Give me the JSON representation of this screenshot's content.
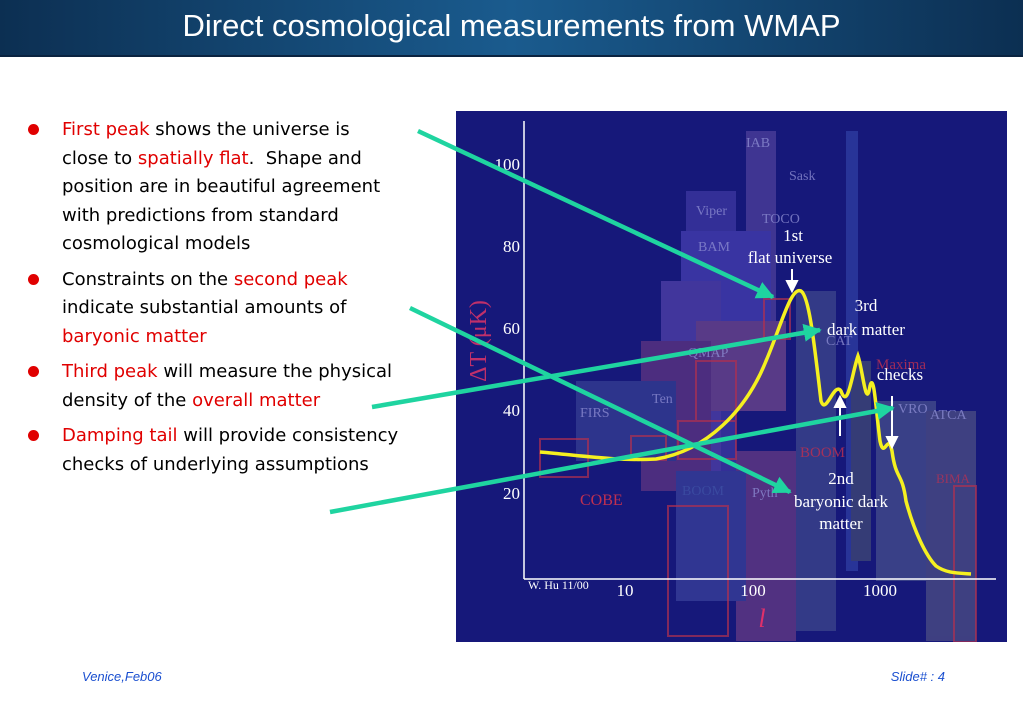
{
  "header": {
    "title": "Direct cosmological measurements from WMAP"
  },
  "bullets": [
    {
      "segments": [
        {
          "text": "First peak",
          "highlight": true
        },
        {
          "text": " shows the universe is close to ",
          "highlight": false
        },
        {
          "text": "spatially flat",
          "highlight": true
        },
        {
          "text": ".  Shape and position are in beautiful agreement with predictions from standard cosmological models",
          "highlight": false
        }
      ]
    },
    {
      "segments": [
        {
          "text": "Constraints on the ",
          "highlight": false
        },
        {
          "text": "second peak",
          "highlight": true
        },
        {
          "text": " indicate substantial amounts of ",
          "highlight": false
        },
        {
          "text": "baryonic matter",
          "highlight": true
        }
      ]
    },
    {
      "segments": [
        {
          "text": "Third peak",
          "highlight": true
        },
        {
          "text": " will measure the physical density of the ",
          "highlight": false
        },
        {
          "text": "overall matter",
          "highlight": true
        }
      ]
    },
    {
      "segments": [
        {
          "text": "Damping tail",
          "highlight": true
        },
        {
          "text": " will provide consistency checks of underlying assumptions",
          "highlight": false
        }
      ]
    }
  ],
  "figure": {
    "y_axis_label": "ΔT (μK)",
    "x_axis_label": "l",
    "credit": "W. Hu 11/00",
    "y_tick_labels": [
      "100",
      "80",
      "60",
      "40",
      "20"
    ],
    "x_tick_labels": [
      "10",
      "100",
      "1000"
    ],
    "annotations": [
      "1st",
      "flat universe",
      "3rd",
      "dark matter",
      "checks",
      "2nd",
      "baryonic dark",
      "matter"
    ],
    "experiment_labels": [
      "IAB",
      "Sask",
      "Viper",
      "TOCO",
      "BAM",
      "QMAP",
      "CAT",
      "Ten",
      "FIRS",
      "COBE",
      "BOOM",
      "Pyth",
      "BOOM",
      "Maxima",
      "VRO",
      "ATCA",
      "BIMA"
    ]
  },
  "footer": {
    "left": "Venice,Feb06",
    "right": "Slide# : 4"
  }
}
